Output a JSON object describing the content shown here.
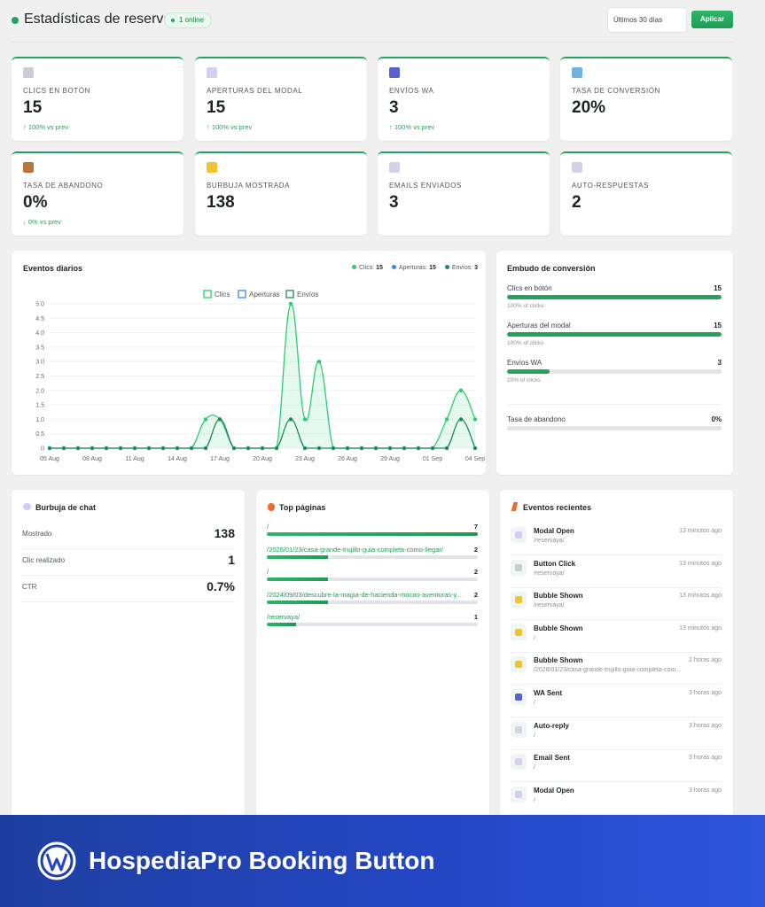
{
  "header": {
    "title": "Estadísticas de reservas",
    "online_badge": "1 online",
    "range_value": "Últimos 30 días",
    "apply_label": "Aplicar"
  },
  "stats": [
    {
      "label": "Clics en botón",
      "value": "15",
      "change": "↑ 100% vs prev",
      "icon": "mouse-icon",
      "color": "#c9ced6"
    },
    {
      "label": "Aperturas del modal",
      "value": "15",
      "change": "↑ 100% vs prev",
      "icon": "speech-bubble-icon",
      "color": "#d6ccf2"
    },
    {
      "label": "Envíos WA",
      "value": "3",
      "change": "↑ 100% vs prev",
      "icon": "phone-icon",
      "color": "#5a5fcf"
    },
    {
      "label": "Tasa de conversión",
      "value": "20%",
      "change": "",
      "icon": "bar-chart-icon",
      "color": "#6db3e6"
    },
    {
      "label": "Tasa de abandono",
      "value": "0%",
      "change": "↓ 0% vs prev",
      "icon": "door-icon",
      "color": "#b8723a"
    },
    {
      "label": "Burbuja mostrada",
      "value": "138",
      "change": "",
      "icon": "lightbulb-icon",
      "color": "#f2c230"
    },
    {
      "label": "Emails enviados",
      "value": "3",
      "change": "",
      "icon": "envelope-icon",
      "color": "#d8cfe8"
    },
    {
      "label": "Auto-respuestas",
      "value": "2",
      "change": "",
      "icon": "envelope-icon",
      "color": "#d8cfe8"
    }
  ],
  "daily": {
    "title": "Eventos diarios",
    "summary": [
      {
        "label": "Clics:",
        "value": "15",
        "color": "#2ecc71"
      },
      {
        "label": "Aperturas:",
        "value": "15",
        "color": "#3b82f6"
      },
      {
        "label": "Envíos:",
        "value": "3",
        "color": "#1f8a5a"
      }
    ]
  },
  "chart_data": {
    "type": "line",
    "x": [
      "05 Aug",
      "06 Aug",
      "07 Aug",
      "08 Aug",
      "09 Aug",
      "10 Aug",
      "11 Aug",
      "12 Aug",
      "13 Aug",
      "14 Aug",
      "15 Aug",
      "16 Aug",
      "17 Aug",
      "18 Aug",
      "19 Aug",
      "20 Aug",
      "21 Aug",
      "22 Aug",
      "23 Aug",
      "24 Aug",
      "25 Aug",
      "26 Aug",
      "27 Aug",
      "28 Aug",
      "29 Aug",
      "30 Aug",
      "31 Aug",
      "01 Sep",
      "02 Sep",
      "03 Sep",
      "04 Sep"
    ],
    "tick_labels": [
      "05 Aug",
      "08 Aug",
      "11 Aug",
      "14 Aug",
      "17 Aug",
      "20 Aug",
      "23 Aug",
      "26 Aug",
      "29 Aug",
      "01 Sep",
      "04 Sep"
    ],
    "ylim": [
      0,
      5
    ],
    "yticks": [
      "5.0",
      "4.5",
      "4.0",
      "3.5",
      "3.0",
      "2.5",
      "2.0",
      "1.5",
      "1.0",
      "0.5",
      "0"
    ],
    "series": [
      {
        "name": "Clics",
        "color": "#2ecc71",
        "values": [
          0,
          0,
          0,
          0,
          0,
          0,
          0,
          0,
          0,
          0,
          0,
          1,
          1,
          0,
          0,
          0,
          0,
          5,
          1,
          3,
          0,
          0,
          0,
          0,
          0,
          0,
          0,
          0,
          1,
          2,
          1
        ]
      },
      {
        "name": "Aperturas",
        "color": "#3b82f6",
        "values": [
          0,
          0,
          0,
          0,
          0,
          0,
          0,
          0,
          0,
          0,
          0,
          1,
          1,
          0,
          0,
          0,
          0,
          5,
          1,
          3,
          0,
          0,
          0,
          0,
          0,
          0,
          0,
          0,
          1,
          2,
          1
        ]
      },
      {
        "name": "Envíos",
        "color": "#1f8a5a",
        "values": [
          0,
          0,
          0,
          0,
          0,
          0,
          0,
          0,
          0,
          0,
          0,
          0,
          1,
          0,
          0,
          0,
          0,
          1,
          0,
          0,
          0,
          0,
          0,
          0,
          0,
          0,
          0,
          0,
          0,
          1,
          0
        ]
      }
    ],
    "grid": true,
    "legend": "top"
  },
  "funnel": {
    "title": "Embudo de conversión",
    "rows": [
      {
        "name": "Clics en botón",
        "value": "15",
        "sub": "100% of clicks",
        "pct": 1.0
      },
      {
        "name": "Aperturas del modal",
        "value": "15",
        "sub": "100% of clicks",
        "pct": 1.0
      },
      {
        "name": "Envíos WA",
        "value": "3",
        "sub": "20% of clicks",
        "pct": 0.2
      }
    ],
    "abandon": {
      "name": "Tasa de abandono",
      "value": "0%",
      "pct": 0
    }
  },
  "bubble": {
    "title": "Burbuja de chat",
    "rows": [
      {
        "name": "Mostrado",
        "value": "138"
      },
      {
        "name": "Clic realizado",
        "value": "1"
      },
      {
        "name": "CTR",
        "value": "0.7%"
      }
    ]
  },
  "top_pages": {
    "title": "Top páginas",
    "rows": [
      {
        "url": "/",
        "count": "7",
        "pct": 1.0
      },
      {
        "url": "/2026/01/23/casa-grande-trujillo-guia-completa-como-llegar/",
        "count": "2",
        "pct": 0.29
      },
      {
        "url": "/",
        "count": "2",
        "pct": 0.29
      },
      {
        "url": "/2024/09/03/descubre-la-magia-de-hacienda-mocan-aventuras-y...",
        "count": "2",
        "pct": 0.29
      },
      {
        "url": "/reservaya/",
        "count": "1",
        "pct": 0.14
      }
    ]
  },
  "recent": {
    "title": "Eventos recientes",
    "rows": [
      {
        "type": "Modal Open",
        "path": "/reservaya/",
        "time": "13 minutos ago",
        "icon": "speech-bubble-icon",
        "color": "#d6ccf2"
      },
      {
        "type": "Button Click",
        "path": "/reservaya/",
        "time": "13 minutos ago",
        "icon": "mouse-icon",
        "color": "#c9ced6"
      },
      {
        "type": "Bubble Shown",
        "path": "/reservaya/",
        "time": "13 minutos ago",
        "icon": "lightbulb-icon",
        "color": "#f2c230"
      },
      {
        "type": "Bubble Shown",
        "path": "/",
        "time": "13 minutos ago",
        "icon": "lightbulb-icon",
        "color": "#f2c230"
      },
      {
        "type": "Bubble Shown",
        "path": "/2026/01/23/casa-grande-trujillo-guia-completa-com...",
        "time": "2 horas ago",
        "icon": "lightbulb-icon",
        "color": "#f2c230"
      },
      {
        "type": "WA Sent",
        "path": "/",
        "time": "3 horas ago",
        "icon": "phone-icon",
        "color": "#5a5fcf"
      },
      {
        "type": "Auto-reply",
        "path": "/",
        "time": "3 horas ago",
        "icon": "envelope-icon",
        "color": "#d8cfe8"
      },
      {
        "type": "Email Sent",
        "path": "/",
        "time": "3 horas ago",
        "icon": "envelope-icon",
        "color": "#d8cfe8"
      },
      {
        "type": "Modal Open",
        "path": "/",
        "time": "3 horas ago",
        "icon": "speech-bubble-icon",
        "color": "#d6ccf2"
      }
    ]
  },
  "footer": {
    "product_name": "HospediaPro Booking Button",
    "logo": "wordpress-logo-icon"
  }
}
